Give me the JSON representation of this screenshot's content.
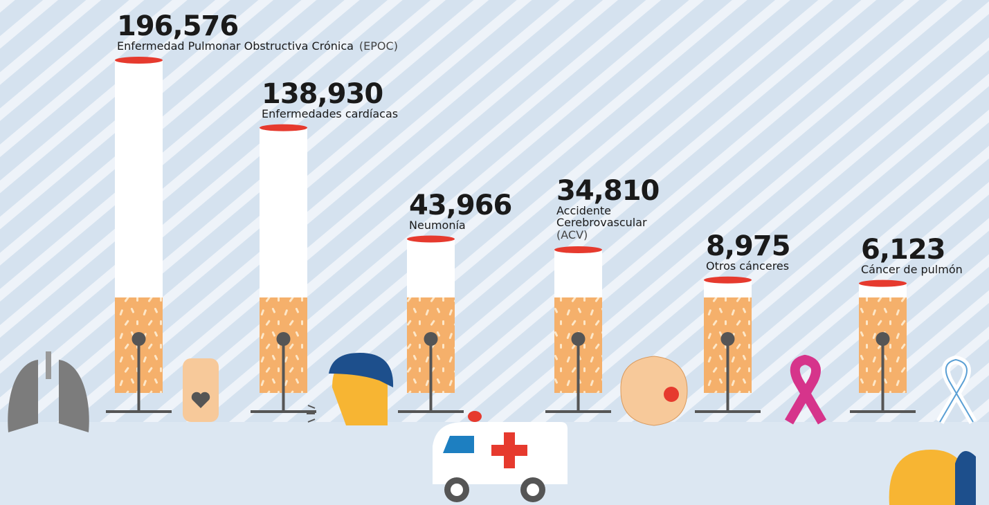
{
  "chart_data": {
    "type": "bar",
    "categories": [
      "Enfermedad Pulmonar Obstructiva Crónica",
      "Enfermedades cardíacas",
      "Neumonía",
      "Accidente Cerebrovascular",
      "Otros cánceres",
      "Cáncer de pulmón"
    ],
    "category_notes": [
      "(EPOC)",
      null,
      null,
      "(ACV)",
      null,
      null
    ],
    "values": [
      196576,
      138930,
      43966,
      34810,
      8975,
      6123
    ],
    "value_labels": [
      "196,576",
      "138,930",
      "43,966",
      "34,810",
      "8,975",
      "6,123"
    ],
    "color": "#ffffff"
  }
}
